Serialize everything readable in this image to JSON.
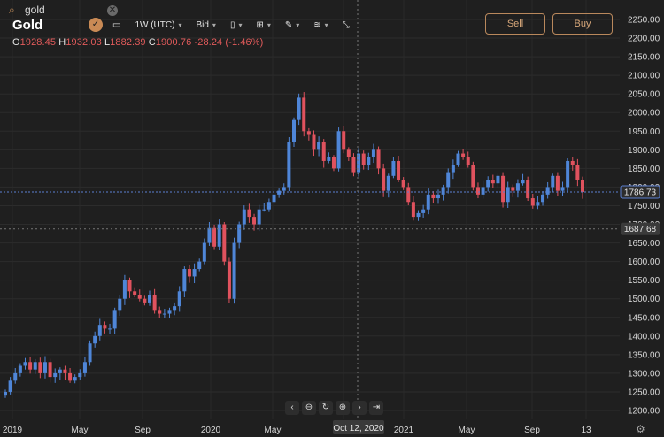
{
  "search": {
    "query": "gold"
  },
  "symbol": "Gold",
  "ohlc": {
    "o_label": "O",
    "o": "1928.45",
    "h_label": "H",
    "h": "1932.03",
    "l_label": "L",
    "l": "1882.39",
    "c_label": "C",
    "c": "1900.76",
    "change": "-28.24 (-1.46%)"
  },
  "toolbar": {
    "interval": "1W (UTC)",
    "price_type": "Bid"
  },
  "actions": {
    "sell": "Sell",
    "buy": "Buy"
  },
  "crosshair": {
    "x_label": "Oct 12, 2020"
  },
  "price_labels": {
    "current": "1786.73",
    "cursor": "1687.68"
  },
  "colors": {
    "up": "#4f86d8",
    "down": "#e0525e",
    "bg": "#1f1f1f",
    "accent": "#c98a55"
  },
  "chart_data": {
    "type": "candlestick",
    "y_ticks": [
      2250,
      2200,
      2150,
      2100,
      2050,
      2000,
      1950,
      1900,
      1850,
      1800,
      1750,
      1700,
      1650,
      1600,
      1550,
      1500,
      1450,
      1400,
      1350,
      1300,
      1250,
      1200
    ],
    "ylim": [
      1190,
      2262
    ],
    "x_ticks": [
      "2019",
      "May",
      "Sep",
      "2020",
      "May",
      "Sep",
      "2021",
      "May",
      "Sep",
      "13"
    ],
    "close_path": [
      1250,
      1280,
      1300,
      1320,
      1330,
      1310,
      1330,
      1300,
      1330,
      1290,
      1300,
      1310,
      1300,
      1280,
      1290,
      1300,
      1330,
      1380,
      1400,
      1430,
      1420,
      1420,
      1470,
      1500,
      1550,
      1520,
      1510,
      1500,
      1490,
      1510,
      1470,
      1460,
      1460,
      1470,
      1480,
      1520,
      1580,
      1560,
      1580,
      1600,
      1650,
      1690,
      1640,
      1700,
      1600,
      1500,
      1650,
      1700,
      1740,
      1720,
      1700,
      1740,
      1740,
      1760,
      1780,
      1790,
      1800,
      1920,
      1980,
      2040,
      1950,
      1940,
      1900,
      1920,
      1870,
      1880,
      1850,
      1950,
      1900,
      1880,
      1840,
      1890,
      1860,
      1880,
      1900,
      1850,
      1790,
      1830,
      1870,
      1820,
      1800,
      1760,
      1720,
      1730,
      1740,
      1780,
      1770,
      1780,
      1800,
      1840,
      1860,
      1890,
      1880,
      1860,
      1800,
      1780,
      1800,
      1820,
      1810,
      1830,
      1760,
      1800,
      1790,
      1810,
      1820,
      1770,
      1750,
      1760,
      1780,
      1800,
      1830,
      1790,
      1800,
      1870,
      1860,
      1820,
      1786.73
    ]
  }
}
